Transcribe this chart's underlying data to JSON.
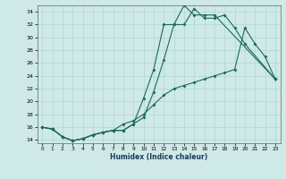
{
  "xlabel": "Humidex (Indice chaleur)",
  "bg_color": "#cfe8e8",
  "line_color": "#1a6b5a",
  "grid_color": "#b0d8d0",
  "xlim": [
    -0.5,
    23.5
  ],
  "ylim": [
    13.5,
    35.0
  ],
  "xticks": [
    0,
    1,
    2,
    3,
    4,
    5,
    6,
    7,
    8,
    9,
    10,
    11,
    12,
    13,
    14,
    15,
    16,
    17,
    18,
    19,
    20,
    21,
    22,
    23
  ],
  "yticks": [
    14,
    16,
    18,
    20,
    22,
    24,
    26,
    28,
    30,
    32,
    34
  ],
  "line1_x": [
    0,
    1,
    2,
    3,
    4,
    5,
    6,
    7,
    8,
    9,
    10,
    11,
    12,
    13,
    14,
    15,
    16,
    17,
    18,
    19,
    20,
    23
  ],
  "line1_y": [
    16.0,
    15.7,
    14.5,
    13.9,
    14.2,
    14.8,
    15.2,
    15.5,
    15.5,
    16.5,
    17.5,
    21.5,
    26.5,
    32.0,
    32.0,
    34.5,
    33.0,
    33.0,
    33.5,
    31.5,
    29.0,
    23.5
  ],
  "line2_x": [
    0,
    1,
    2,
    3,
    4,
    5,
    6,
    7,
    8,
    9,
    10,
    11,
    12,
    13,
    14,
    15,
    16,
    17,
    23
  ],
  "line2_y": [
    16.0,
    15.7,
    14.5,
    13.9,
    14.2,
    14.8,
    15.2,
    15.5,
    15.5,
    16.5,
    20.5,
    25.0,
    32.0,
    32.0,
    35.0,
    33.5,
    33.5,
    33.5,
    23.5
  ],
  "line3_x": [
    0,
    1,
    2,
    3,
    4,
    5,
    6,
    7,
    8,
    9,
    10,
    11,
    12,
    13,
    14,
    15,
    16,
    17,
    18,
    19,
    20,
    21,
    22,
    23
  ],
  "line3_y": [
    16.0,
    15.7,
    14.5,
    13.9,
    14.2,
    14.8,
    15.2,
    15.5,
    16.5,
    17.0,
    18.0,
    19.5,
    21.0,
    22.0,
    22.5,
    23.0,
    23.5,
    24.0,
    24.5,
    25.0,
    31.5,
    29.0,
    27.0,
    23.5
  ]
}
